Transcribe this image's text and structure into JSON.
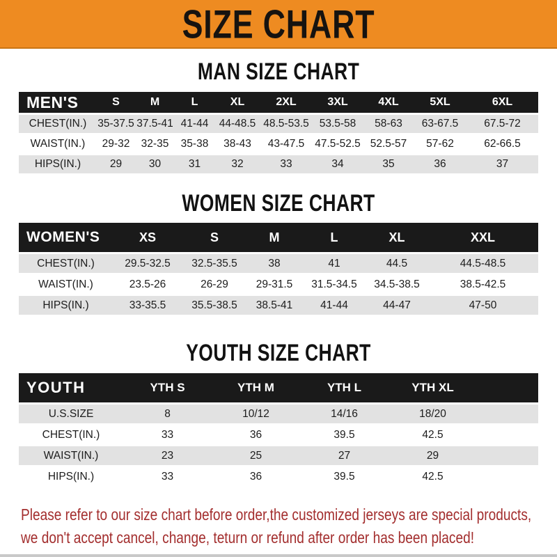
{
  "banner": {
    "title": "SIZE CHART"
  },
  "men": {
    "heading": "MAN SIZE CHART",
    "table": {
      "header": [
        "MEN'S",
        "S",
        "M",
        "L",
        "XL",
        "2XL",
        "3XL",
        "4XL",
        "5XL",
        "6XL"
      ],
      "rows": [
        [
          "CHEST(IN.)",
          "35-37.5",
          "37.5-41",
          "41-44",
          "44-48.5",
          "48.5-53.5",
          "53.5-58",
          "58-63",
          "63-67.5",
          "67.5-72"
        ],
        [
          "WAIST(IN.)",
          "29-32",
          "32-35",
          "35-38",
          "38-43",
          "43-47.5",
          "47.5-52.5",
          "52.5-57",
          "57-62",
          "62-66.5"
        ],
        [
          "HIPS(IN.)",
          "29",
          "30",
          "31",
          "32",
          "33",
          "34",
          "35",
          "36",
          "37"
        ]
      ]
    }
  },
  "women": {
    "heading": "WOMEN SIZE CHART",
    "table": {
      "header": [
        "WOMEN'S",
        "XS",
        "S",
        "M",
        "L",
        "XL",
        "XXL"
      ],
      "rows": [
        [
          "CHEST(IN.)",
          "29.5-32.5",
          "32.5-35.5",
          "38",
          "41",
          "44.5",
          "44.5-48.5"
        ],
        [
          "WAIST(IN.)",
          "23.5-26",
          "26-29",
          "29-31.5",
          "31.5-34.5",
          "34.5-38.5",
          "38.5-42.5"
        ],
        [
          "HIPS(IN.)",
          "33-35.5",
          "35.5-38.5",
          "38.5-41",
          "41-44",
          "44-47",
          "47-50"
        ]
      ]
    }
  },
  "youth": {
    "heading": "YOUTH SIZE CHART",
    "table": {
      "header": [
        "YOUTH",
        "YTH S",
        "YTH M",
        "YTH L",
        "YTH XL",
        ""
      ],
      "rows": [
        [
          "U.S.SIZE",
          "8",
          "10/12",
          "14/16",
          "18/20",
          ""
        ],
        [
          "CHEST(IN.)",
          "33",
          "36",
          "39.5",
          "42.5",
          ""
        ],
        [
          "WAIST(IN.)",
          "23",
          "25",
          "27",
          "29",
          ""
        ],
        [
          "HIPS(IN.)",
          "33",
          "36",
          "39.5",
          "42.5",
          ""
        ]
      ]
    }
  },
  "notice": {
    "line1": "Please refer to our size chart before order,the customized jerseys are special products,",
    "line2": "we don't accept cancel, change, teturn or refund after order has been placed!"
  },
  "colors": {
    "banner_orange": "#EE8B21",
    "header_black": "#1A1A1A",
    "row_gray": "#E2E2E2",
    "notice_red": "#A32E2E"
  }
}
